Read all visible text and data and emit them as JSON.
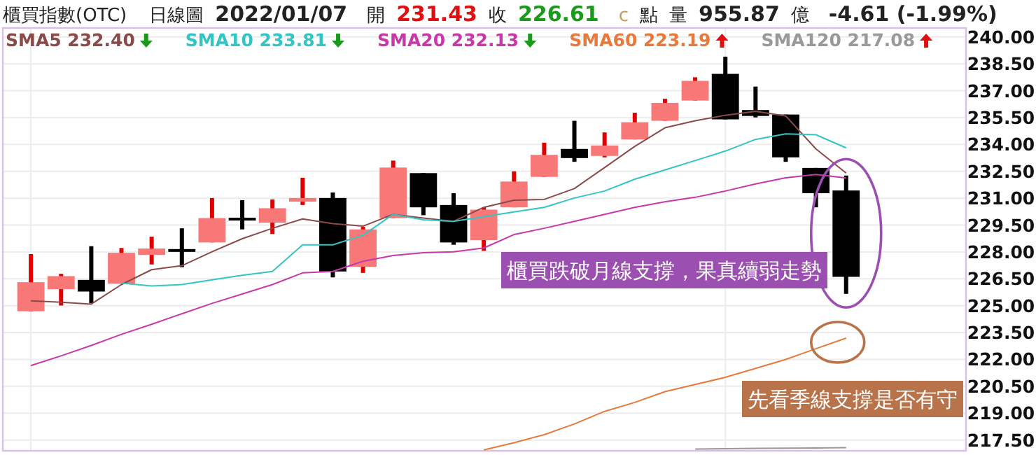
{
  "chart_data": {
    "type": "candlestick",
    "title": "櫃買指數(OTC)",
    "annotations": [
      "日線圖",
      "2022/01/07",
      "開",
      "231.43",
      "收",
      "226.61",
      "c",
      "點",
      "量",
      "955.87",
      "億",
      "-4.61 (-1.99%)",
      "櫃買跌破月線支撐，果真續弱走勢",
      "先看季線支撐是否有守"
    ],
    "categories": [
      null,
      null,
      null,
      null,
      null,
      null,
      null,
      null,
      null,
      null,
      null,
      null,
      null,
      null,
      null,
      null,
      null,
      null,
      null,
      null,
      null,
      null,
      null,
      null,
      null,
      null,
      null,
      null
    ],
    "ohlc": [
      [
        224.69,
        227.88,
        224.69,
        226.31
      ],
      [
        225.92,
        226.78,
        225.01,
        226.65
      ],
      [
        226.44,
        228.32,
        225.13,
        225.79
      ],
      [
        226.23,
        228.22,
        226.23,
        227.95
      ],
      [
        227.83,
        228.85,
        227.3,
        228.19
      ],
      [
        228.16,
        229.32,
        227.15,
        228.1
      ],
      [
        228.53,
        231.01,
        228.53,
        229.89
      ],
      [
        229.91,
        230.89,
        229.26,
        229.85
      ],
      [
        229.63,
        230.93,
        229.0,
        230.44
      ],
      [
        230.81,
        232.14,
        230.62,
        231.01
      ],
      [
        231.01,
        231.32,
        226.58,
        226.91
      ],
      [
        227.17,
        229.4,
        226.83,
        229.26
      ],
      [
        229.89,
        233.1,
        229.89,
        232.71
      ],
      [
        232.4,
        232.4,
        230.05,
        230.49
      ],
      [
        230.62,
        231.28,
        228.4,
        228.53
      ],
      [
        228.66,
        230.49,
        228.06,
        230.36
      ],
      [
        230.49,
        232.5,
        230.49,
        231.93
      ],
      [
        232.19,
        234.1,
        232.19,
        233.42
      ],
      [
        233.75,
        235.32,
        233.03,
        233.24
      ],
      [
        233.36,
        234.67,
        233.28,
        233.94
      ],
      [
        234.28,
        235.77,
        234.28,
        235.24
      ],
      [
        235.32,
        236.55,
        235.32,
        236.32
      ],
      [
        236.45,
        237.75,
        236.45,
        237.55
      ],
      [
        237.94,
        238.9,
        235.4,
        235.4
      ],
      [
        235.92,
        237.23,
        235.51,
        235.59
      ],
      [
        235.67,
        235.67,
        233.03,
        233.28
      ],
      [
        232.69,
        232.69,
        230.49,
        231.28
      ],
      [
        231.43,
        232.27,
        225.66,
        226.61
      ]
    ],
    "colors": [
      "#f87878",
      "#f87878",
      "#000000",
      "#f87878",
      "#f87878",
      "#000000",
      "#f87878",
      "#000000",
      "#f87878",
      "#f87878",
      "#000000",
      "#f87878",
      "#f87878",
      "#000000",
      "#000000",
      "#f87878",
      "#f87878",
      "#f87878",
      "#000000",
      "#f87878",
      "#f87878",
      "#f87878",
      "#f87878",
      "#000000",
      "#000000",
      "#000000",
      "#000000",
      "#000000"
    ],
    "series": [
      {
        "type": "line",
        "name": "SMA5 232.40",
        "color": "#8a4a4a",
        "values": [
          225.27,
          225.19,
          225.09,
          226.18,
          227.01,
          227.23,
          228.01,
          228.74,
          229.32,
          229.84,
          229.58,
          229.44,
          230.1,
          229.89,
          229.71,
          230.49,
          230.89,
          230.93,
          231.54,
          232.71,
          233.89,
          234.93,
          235.32,
          235.63,
          235.85,
          235.59,
          233.75,
          232.4
        ]
      },
      {
        "type": "line",
        "name": "SMA10 233.81",
        "color": "#33c4c4",
        "values": [
          null,
          null,
          null,
          226.26,
          226.1,
          226.18,
          226.44,
          226.7,
          226.91,
          228.4,
          228.4,
          228.93,
          230.1,
          229.79,
          229.71,
          229.97,
          230.23,
          230.49,
          231.01,
          231.4,
          232.06,
          232.58,
          233.1,
          233.63,
          234.28,
          234.59,
          234.54,
          233.81
        ]
      },
      {
        "type": "line",
        "name": "SMA20 232.13",
        "color": "#c838a8",
        "values": [
          221.66,
          222.2,
          222.78,
          223.4,
          223.96,
          224.55,
          225.13,
          225.65,
          226.18,
          226.83,
          226.91,
          227.48,
          227.8,
          227.96,
          228.01,
          228.22,
          228.97,
          229.32,
          229.71,
          230.1,
          230.49,
          230.8,
          231.05,
          231.4,
          231.8,
          232.14,
          232.32,
          232.13
        ]
      },
      {
        "type": "line",
        "name": "SMA60 223.19",
        "color": "#e8793a",
        "values": [
          null,
          null,
          null,
          null,
          null,
          null,
          null,
          null,
          null,
          null,
          null,
          null,
          null,
          null,
          null,
          216.95,
          217.35,
          217.8,
          218.4,
          219.1,
          219.6,
          220.2,
          220.6,
          221.0,
          221.5,
          222.0,
          222.6,
          223.19
        ]
      },
      {
        "type": "line",
        "name": "SMA120 217.08",
        "color": "#999999",
        "values": [
          null,
          null,
          null,
          null,
          null,
          null,
          null,
          null,
          null,
          null,
          null,
          null,
          null,
          null,
          null,
          null,
          null,
          null,
          null,
          null,
          null,
          null,
          217.0,
          217.02,
          217.04,
          217.05,
          217.06,
          217.08
        ]
      }
    ],
    "ylim": [
      216.9,
      240.5
    ],
    "yticks": [
      {
        "value": 240,
        "label": "240.00"
      },
      {
        "value": 238.5,
        "label": "238.50"
      },
      {
        "value": 237,
        "label": "237.00"
      },
      {
        "value": 235.5,
        "label": "235.50"
      },
      {
        "value": 234,
        "label": "234.00"
      },
      {
        "value": 232.5,
        "label": "232.50"
      },
      {
        "value": 231,
        "label": "231.00"
      },
      {
        "value": 229.5,
        "label": "229.50"
      },
      {
        "value": 228,
        "label": "228.00"
      },
      {
        "value": 226.5,
        "label": "226.50"
      },
      {
        "value": 225,
        "label": "225.00"
      },
      {
        "value": 223.5,
        "label": "223.50"
      },
      {
        "value": 222,
        "label": "222.00"
      },
      {
        "value": 220.5,
        "label": "220.50"
      },
      {
        "value": 219,
        "label": "219.00"
      },
      {
        "value": 217.5,
        "label": "217.50"
      }
    ],
    "grid": "y",
    "legend": "top left"
  }
}
